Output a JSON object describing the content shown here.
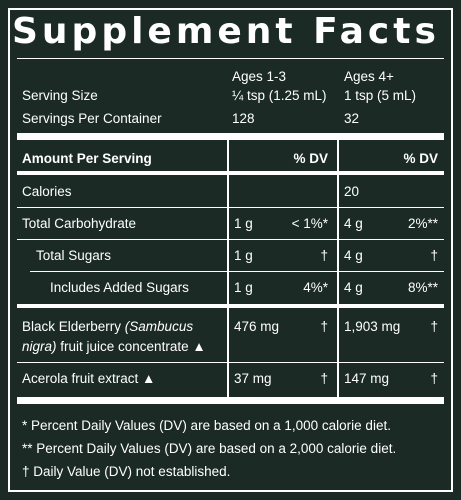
{
  "title": "Supplement Facts",
  "columns": {
    "group_a": "Ages 1-3",
    "group_b": "Ages 4+"
  },
  "serving_size": {
    "label": "Serving Size",
    "a": "¼ tsp (1.25 mL)",
    "b": "1 tsp (5 mL)"
  },
  "servings_per_container": {
    "label": "Servings Per Container",
    "a": "128",
    "b": "32"
  },
  "header": {
    "amount_per_serving": "Amount Per Serving",
    "dv_a": "% DV",
    "dv_b": "% DV"
  },
  "rows": [
    {
      "label": "Calories",
      "a_amount": "",
      "a_dv": "",
      "b_amount": "20",
      "b_dv": ""
    },
    {
      "label": "Total Carbohydrate",
      "a_amount": "1 g",
      "a_dv": "< 1%*",
      "b_amount": "4 g",
      "b_dv": "2%**"
    },
    {
      "label": "Total Sugars",
      "a_amount": "1 g",
      "a_dv": "†",
      "b_amount": "4 g",
      "b_dv": "†"
    },
    {
      "label": "Includes Added Sugars",
      "a_amount": "1 g",
      "a_dv": "4%*",
      "b_amount": "4 g",
      "b_dv": "8%**"
    },
    {
      "label_part1": "Black Elderberry ",
      "label_italic": "(Sambucus",
      "label_line2_italic": "nigra)",
      "label_line2": " fruit juice concentrate ▲",
      "a_amount": "476 mg",
      "a_dv": "†",
      "b_amount": "1,903 mg",
      "b_dv": "†"
    },
    {
      "label": "Acerola fruit extract ▲",
      "a_amount": "37 mg",
      "a_dv": "†",
      "b_amount": "147 mg",
      "b_dv": "†"
    }
  ],
  "footnotes": [
    "*  Percent Daily Values (DV) are based on a 1,000 calorie diet.",
    "** Percent Daily Values (DV) are based on a 2,000 calorie diet.",
    "†  Daily Value (DV) not established."
  ]
}
